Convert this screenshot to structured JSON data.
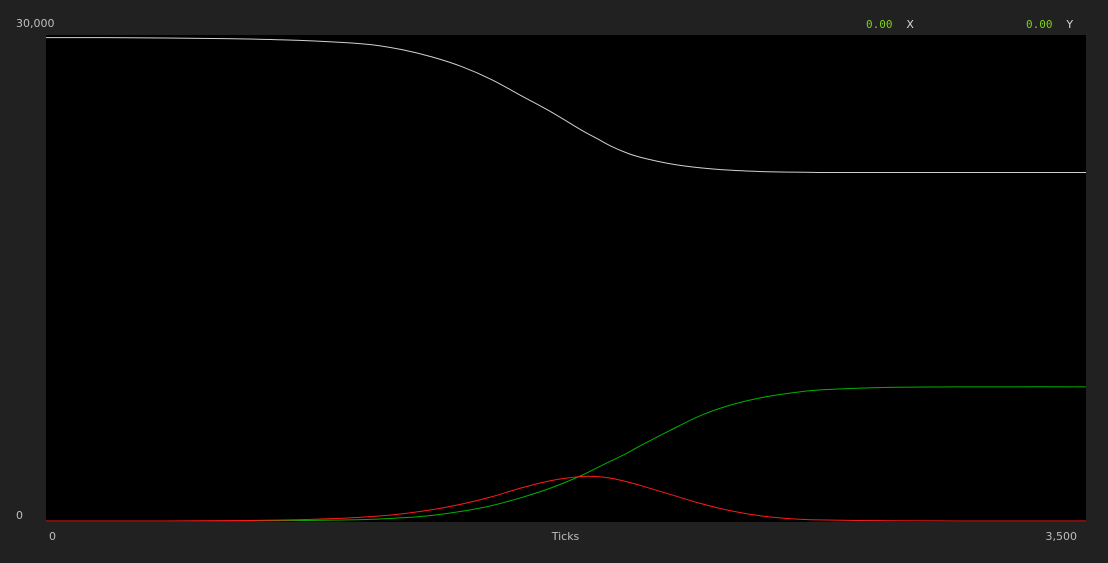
{
  "readout": {
    "x": {
      "value": "0.00",
      "label": "X"
    },
    "y": {
      "value": "0.00",
      "label": "Y"
    }
  },
  "chart_data": {
    "type": "line",
    "xlabel": "Ticks",
    "ylabel": "",
    "xlim": [
      0,
      3500
    ],
    "ylim": [
      0,
      30000
    ],
    "x_tick_labels": [
      "0",
      "3,500"
    ],
    "y_tick_labels": [
      "0",
      "30,000"
    ],
    "grid": false,
    "x": [
      0,
      200,
      400,
      600,
      800,
      1000,
      1100,
      1200,
      1300,
      1400,
      1500,
      1600,
      1700,
      1800,
      1850,
      1900,
      1950,
      2000,
      2100,
      2200,
      2300,
      2400,
      2500,
      2600,
      2800,
      3000,
      3200,
      3500
    ],
    "series": [
      {
        "color": "#d0d0d0",
        "values": [
          29900,
          29900,
          29880,
          29840,
          29760,
          29600,
          29450,
          29150,
          28700,
          28100,
          27300,
          26300,
          25300,
          24200,
          23700,
          23200,
          22800,
          22500,
          22100,
          21850,
          21700,
          21620,
          21580,
          21560,
          21560,
          21560,
          21560,
          21560
        ]
      },
      {
        "color": "#00b000",
        "values": [
          0,
          0,
          0,
          0,
          20,
          60,
          110,
          200,
          350,
          600,
          950,
          1450,
          2050,
          2800,
          3250,
          3700,
          4150,
          4650,
          5600,
          6500,
          7150,
          7600,
          7900,
          8100,
          8250,
          8290,
          8300,
          8300
        ]
      },
      {
        "color": "#ff1a1a",
        "values": [
          0,
          0,
          0,
          20,
          60,
          170,
          280,
          450,
          700,
          1050,
          1500,
          2050,
          2500,
          2750,
          2750,
          2650,
          2450,
          2200,
          1650,
          1100,
          650,
          330,
          150,
          70,
          20,
          5,
          0,
          0
        ]
      }
    ]
  }
}
